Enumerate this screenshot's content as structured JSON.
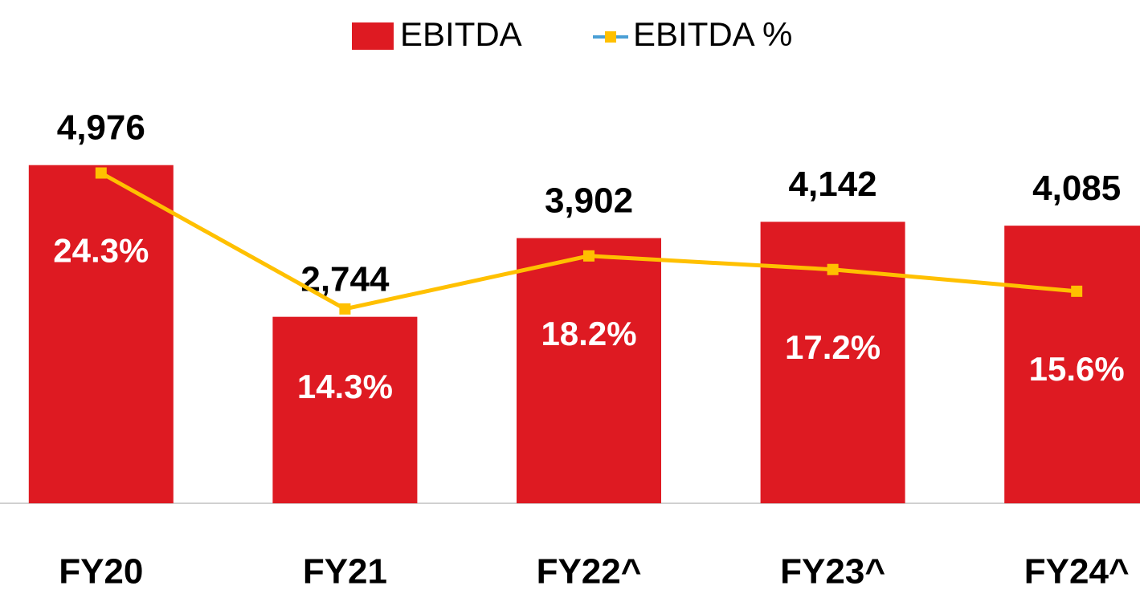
{
  "chart_data": {
    "type": "bar",
    "categories": [
      "FY20",
      "FY21",
      "FY22^",
      "FY23^",
      "FY24^"
    ],
    "series": [
      {
        "name": "EBITDA",
        "type": "bar",
        "color": "#de1a22",
        "values": [
          4976,
          2744,
          3902,
          4142,
          4085
        ],
        "value_labels": [
          "4,976",
          "2,744",
          "3,902",
          "4,142",
          "4,085"
        ]
      },
      {
        "name": "EBITDA %",
        "type": "line",
        "axis": "y2",
        "color": "#ffc000",
        "legend_line_color": "#4a9fd5",
        "values": [
          24.3,
          14.3,
          18.2,
          17.2,
          15.6
        ],
        "value_labels": [
          "24.3%",
          "14.3%",
          "18.2%",
          "17.2%",
          "15.6%"
        ]
      }
    ],
    "ylim": [
      0,
      6000
    ],
    "y2lim": [
      0,
      30
    ],
    "legend": "top"
  }
}
